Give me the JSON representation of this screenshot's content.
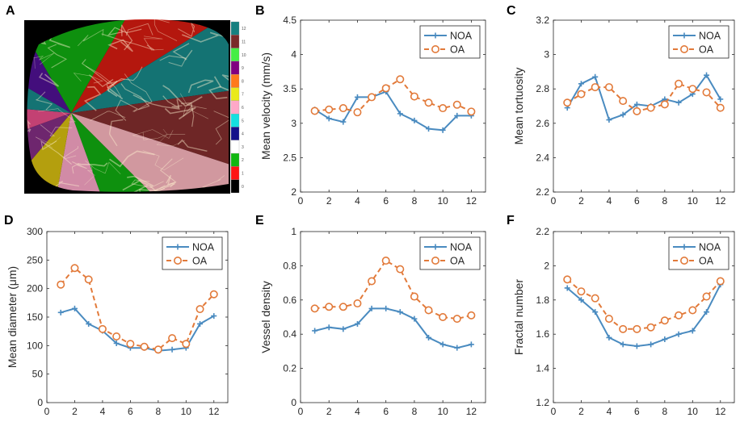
{
  "figure": {
    "panel_letters": [
      "A",
      "B",
      "C",
      "D",
      "E",
      "F"
    ],
    "colorbar_labels": [
      "12",
      "11",
      "10",
      "9",
      "8",
      "7",
      "6",
      "5",
      "4",
      "3",
      "2",
      "1",
      "0"
    ]
  },
  "colors": {
    "noa": "#4a8bc0",
    "oa": "#e27a3a",
    "colorbar": [
      "#168080",
      "#7a2a2a",
      "#44ee44",
      "#800080",
      "#ff7a1a",
      "#eaea1a",
      "#ffa8c8",
      "#14e0e0",
      "#14108a",
      "#ffffff",
      "#10b810",
      "#ff1414",
      "#000000"
    ],
    "sectors": [
      "#c81a10",
      "#168080",
      "#7a2a2a",
      "#e8a8b0",
      "#10a010",
      "#e89ab8",
      "#c8b010",
      "#7a2a7a",
      "#d84880",
      "#168080",
      "#4a108a",
      "#10a010"
    ]
  },
  "chart_data": [
    {
      "panel": "B",
      "type": "line",
      "title": "",
      "xlabel": "",
      "ylabel": "Mean velocity (mm/s)",
      "x": [
        1,
        2,
        3,
        4,
        5,
        6,
        7,
        8,
        9,
        10,
        11,
        12
      ],
      "xlim": [
        0,
        13
      ],
      "ylim": [
        2,
        4.5
      ],
      "xticks": [
        "0",
        "2",
        "4",
        "6",
        "8",
        "10",
        "12"
      ],
      "yticks": [
        "2",
        "2.5",
        "3",
        "3.5",
        "4",
        "4.5"
      ],
      "legend": "top-right",
      "series": [
        {
          "name": "NOA",
          "values": [
            3.2,
            3.07,
            3.02,
            3.38,
            3.38,
            3.46,
            3.14,
            3.04,
            2.92,
            2.9,
            3.11,
            3.11
          ]
        },
        {
          "name": "OA",
          "values": [
            3.18,
            3.2,
            3.22,
            3.16,
            3.38,
            3.51,
            3.64,
            3.39,
            3.3,
            3.22,
            3.27,
            3.17
          ]
        }
      ]
    },
    {
      "panel": "C",
      "type": "line",
      "title": "",
      "xlabel": "",
      "ylabel": "Mean tortuosity",
      "x": [
        1,
        2,
        3,
        4,
        5,
        6,
        7,
        8,
        9,
        10,
        11,
        12
      ],
      "xlim": [
        0,
        13
      ],
      "ylim": [
        2.2,
        3.2
      ],
      "xticks": [
        "0",
        "2",
        "4",
        "6",
        "8",
        "10",
        "12"
      ],
      "yticks": [
        "2.2",
        "2.4",
        "2.6",
        "2.8",
        "3",
        "3.2"
      ],
      "legend": "top-right",
      "series": [
        {
          "name": "NOA",
          "values": [
            2.69,
            2.83,
            2.87,
            2.62,
            2.65,
            2.71,
            2.7,
            2.74,
            2.72,
            2.77,
            2.88,
            2.74
          ]
        },
        {
          "name": "OA",
          "values": [
            2.72,
            2.77,
            2.81,
            2.81,
            2.73,
            2.67,
            2.69,
            2.71,
            2.83,
            2.8,
            2.78,
            2.69
          ]
        }
      ]
    },
    {
      "panel": "D",
      "type": "line",
      "title": "",
      "xlabel": "",
      "ylabel": "Mean diameter (μm)",
      "x": [
        1,
        2,
        3,
        4,
        5,
        6,
        7,
        8,
        9,
        10,
        11,
        12
      ],
      "xlim": [
        0,
        13
      ],
      "ylim": [
        0,
        300
      ],
      "xticks": [
        "0",
        "2",
        "4",
        "6",
        "8",
        "10",
        "12"
      ],
      "yticks": [
        "0",
        "50",
        "100",
        "150",
        "200",
        "250",
        "300"
      ],
      "legend": "top-right",
      "series": [
        {
          "name": "NOA",
          "values": [
            158,
            165,
            138,
            126,
            104,
            96,
            96,
            91,
            93,
            96,
            138,
            152
          ]
        },
        {
          "name": "OA",
          "values": [
            207,
            236,
            216,
            129,
            116,
            103,
            98,
            93,
            113,
            103,
            164,
            190
          ]
        }
      ]
    },
    {
      "panel": "E",
      "type": "line",
      "title": "",
      "xlabel": "",
      "ylabel": "Vessel density",
      "x": [
        1,
        2,
        3,
        4,
        5,
        6,
        7,
        8,
        9,
        10,
        11,
        12
      ],
      "xlim": [
        0,
        13
      ],
      "ylim": [
        0,
        1
      ],
      "xticks": [
        "0",
        "2",
        "4",
        "6",
        "8",
        "10",
        "12"
      ],
      "yticks": [
        "0",
        "0.2",
        "0.4",
        "0.6",
        "0.8",
        "1"
      ],
      "legend": "top-right",
      "series": [
        {
          "name": "NOA",
          "values": [
            0.42,
            0.44,
            0.43,
            0.46,
            0.55,
            0.55,
            0.53,
            0.49,
            0.38,
            0.34,
            0.32,
            0.34
          ]
        },
        {
          "name": "OA",
          "values": [
            0.55,
            0.56,
            0.56,
            0.58,
            0.71,
            0.83,
            0.78,
            0.62,
            0.54,
            0.5,
            0.49,
            0.51
          ]
        }
      ]
    },
    {
      "panel": "F",
      "type": "line",
      "title": "",
      "xlabel": "",
      "ylabel": "Fractal number",
      "x": [
        1,
        2,
        3,
        4,
        5,
        6,
        7,
        8,
        9,
        10,
        11,
        12
      ],
      "xlim": [
        0,
        13
      ],
      "ylim": [
        1.2,
        2.2
      ],
      "xticks": [
        "0",
        "2",
        "4",
        "6",
        "8",
        "10",
        "12"
      ],
      "yticks": [
        "1.2",
        "1.4",
        "1.6",
        "1.8",
        "2",
        "2.2"
      ],
      "legend": "top-right",
      "series": [
        {
          "name": "NOA",
          "values": [
            1.87,
            1.8,
            1.73,
            1.58,
            1.54,
            1.53,
            1.54,
            1.57,
            1.6,
            1.62,
            1.73,
            1.89
          ]
        },
        {
          "name": "OA",
          "values": [
            1.92,
            1.85,
            1.81,
            1.69,
            1.63,
            1.63,
            1.64,
            1.68,
            1.71,
            1.74,
            1.82,
            1.91
          ]
        }
      ]
    }
  ]
}
